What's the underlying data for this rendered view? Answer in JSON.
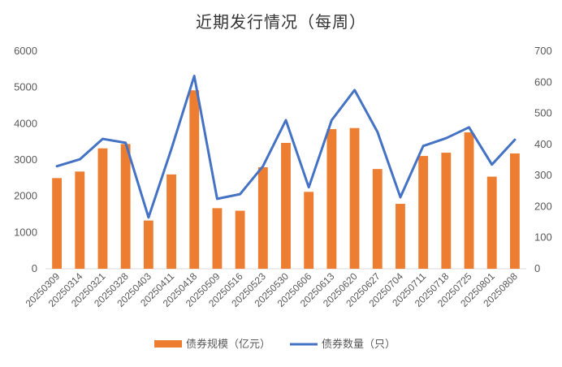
{
  "chart_data": {
    "type": "bar+line",
    "title": "近期发行情况（每周）",
    "categories": [
      "20250309",
      "20250314",
      "20250321",
      "20250328",
      "20250403",
      "20250411",
      "20250418",
      "20250509",
      "20250516",
      "20250523",
      "20250530",
      "20250606",
      "20250613",
      "20250620",
      "20250627",
      "20250704",
      "20250711",
      "20250718",
      "20250725",
      "20250801",
      "20250808"
    ],
    "series": [
      {
        "name": "债券规模（亿元）",
        "kind": "bar",
        "axis": "left",
        "color": "#ED7D31",
        "values": [
          2500,
          2680,
          3320,
          3440,
          1330,
          2600,
          4920,
          1670,
          1600,
          2800,
          3470,
          2120,
          3850,
          3880,
          2750,
          1790,
          3110,
          3200,
          3760,
          2540,
          3180
        ]
      },
      {
        "name": "债券数量（只）",
        "kind": "line",
        "axis": "right",
        "color": "#4472C4",
        "values": [
          330,
          352,
          418,
          405,
          165,
          385,
          620,
          225,
          240,
          330,
          478,
          262,
          478,
          575,
          440,
          230,
          395,
          420,
          455,
          335,
          415
        ]
      }
    ],
    "y_left": {
      "min": 0,
      "max": 6000,
      "ticks": [
        0,
        1000,
        2000,
        3000,
        4000,
        5000,
        6000
      ]
    },
    "y_right": {
      "min": 0,
      "max": 700,
      "ticks": [
        0,
        100,
        200,
        300,
        400,
        500,
        600,
        700
      ]
    },
    "grid": false,
    "legend_position": "bottom"
  }
}
